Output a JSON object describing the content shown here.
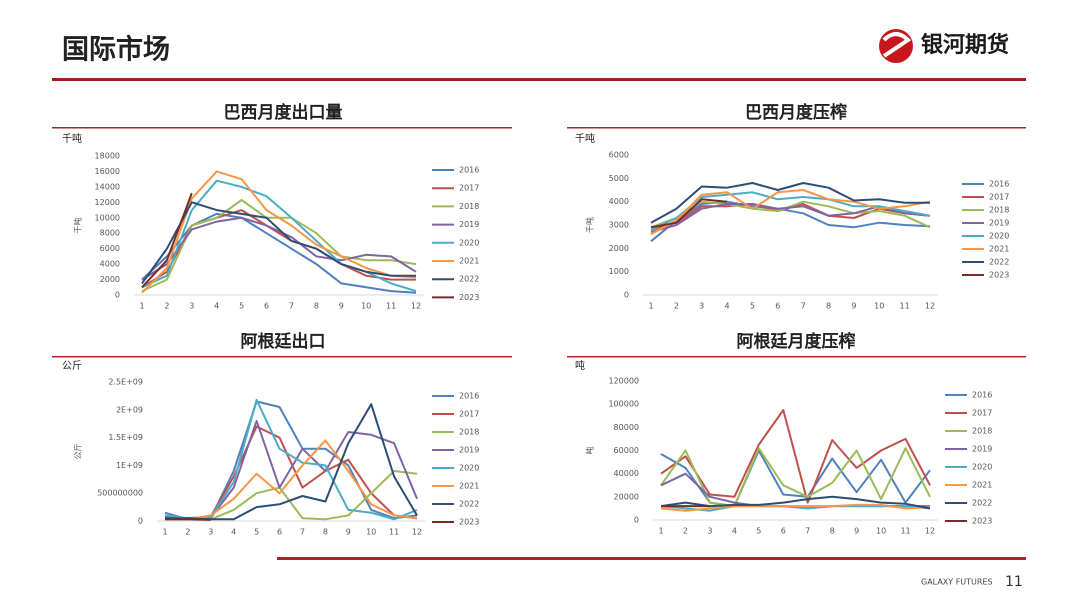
{
  "header": {
    "title": "国际市场",
    "logo": "银河期货"
  },
  "footer": {
    "company": "GALAXY FUTURES",
    "page": "11"
  },
  "chart_data": [
    {
      "type": "line",
      "title": "巴西月度出口量",
      "unit": "千吨",
      "y_label": "千吨",
      "categories": [
        1,
        2,
        3,
        4,
        5,
        6,
        7,
        8,
        9,
        10,
        11,
        12
      ],
      "ylim": [
        0,
        18000
      ],
      "yticks": [
        0,
        2000,
        4000,
        6000,
        8000,
        10000,
        12000,
        14000,
        16000,
        18000
      ],
      "series": [
        {
          "name": "2016",
          "color": "#4f81bd",
          "values": [
            2000,
            5000,
            9000,
            10500,
            10000,
            8000,
            6000,
            4000,
            1500,
            1000,
            500,
            300
          ]
        },
        {
          "name": "2017",
          "color": "#c0504d",
          "values": [
            1000,
            3000,
            9000,
            10000,
            11000,
            9000,
            7000,
            6000,
            4000,
            2500,
            2000,
            2000
          ]
        },
        {
          "name": "2018",
          "color": "#9bbb59",
          "values": [
            500,
            2000,
            9000,
            10000,
            12300,
            10000,
            10000,
            8000,
            5000,
            4500,
            4500,
            4000
          ]
        },
        {
          "name": "2019",
          "color": "#8064a2",
          "values": [
            2000,
            4000,
            8500,
            9500,
            10000,
            9000,
            7500,
            5000,
            4500,
            5200,
            5000,
            3000
          ]
        },
        {
          "name": "2020",
          "color": "#4bacc6",
          "values": [
            1000,
            2500,
            11000,
            14800,
            14000,
            12800,
            10000,
            7000,
            4000,
            3000,
            1500,
            500
          ]
        },
        {
          "name": "2021",
          "color": "#f79646",
          "values": [
            300,
            3500,
            12500,
            16000,
            15000,
            11000,
            9000,
            6500,
            5000,
            3500,
            2500,
            2300
          ]
        },
        {
          "name": "2022",
          "color": "#2c4d75",
          "values": [
            1500,
            6000,
            12000,
            11000,
            10500,
            10000,
            7000,
            6000,
            4000,
            3000,
            2500,
            2500
          ]
        },
        {
          "name": "2023",
          "color": "#772c2a",
          "values": [
            1000,
            4500,
            13200,
            null,
            null,
            null,
            null,
            null,
            null,
            null,
            null,
            null
          ]
        }
      ]
    },
    {
      "type": "line",
      "title": "巴西月度压榨",
      "unit": "千吨",
      "y_label": "千吨",
      "categories": [
        1,
        2,
        3,
        4,
        5,
        6,
        7,
        8,
        9,
        10,
        11,
        12
      ],
      "ylim": [
        0,
        6000
      ],
      "yticks": [
        0,
        1000,
        2000,
        3000,
        4000,
        5000,
        6000
      ],
      "series": [
        {
          "name": "2016",
          "color": "#4f81bd",
          "values": [
            2300,
            3200,
            3900,
            4000,
            3800,
            3700,
            3500,
            3000,
            2900,
            3100,
            3000,
            2950
          ]
        },
        {
          "name": "2017",
          "color": "#c0504d",
          "values": [
            2800,
            3100,
            3800,
            3800,
            3900,
            3600,
            3900,
            3400,
            3300,
            3700,
            3500,
            3400
          ]
        },
        {
          "name": "2018",
          "color": "#9bbb59",
          "values": [
            2900,
            3300,
            4000,
            3900,
            3700,
            3600,
            4000,
            3800,
            3500,
            3600,
            3400,
            2900
          ]
        },
        {
          "name": "2019",
          "color": "#8064a2",
          "values": [
            2700,
            3000,
            3700,
            3900,
            3900,
            3700,
            3800,
            3400,
            3500,
            3800,
            3500,
            3400
          ]
        },
        {
          "name": "2020",
          "color": "#4bacc6",
          "values": [
            2800,
            3300,
            4200,
            4300,
            4400,
            4100,
            4200,
            4100,
            3800,
            3800,
            3600,
            3400
          ]
        },
        {
          "name": "2021",
          "color": "#f79646",
          "values": [
            2600,
            3200,
            4300,
            4400,
            3700,
            4400,
            4500,
            4100,
            4000,
            3700,
            3800,
            4000
          ]
        },
        {
          "name": "2022",
          "color": "#2c4d75",
          "values": [
            3100,
            3700,
            4650,
            4600,
            4800,
            4500,
            4800,
            4600,
            4050,
            4100,
            3950,
            3950
          ]
        },
        {
          "name": "2023",
          "color": "#772c2a",
          "values": [
            2900,
            3100,
            4100,
            4000,
            null,
            null,
            null,
            null,
            null,
            null,
            null,
            null
          ]
        }
      ]
    },
    {
      "type": "line",
      "title": "阿根廷出口",
      "unit": "公斤",
      "y_label": "公斤",
      "categories": [
        1,
        2,
        3,
        4,
        5,
        6,
        7,
        8,
        9,
        10,
        11,
        12
      ],
      "ylim": [
        0,
        2500000000
      ],
      "yticks": [
        0,
        500000000,
        {
          "value": 1000000000,
          "label": "1E+09"
        },
        {
          "value": 1500000000,
          "label": "1.5E+09"
        },
        {
          "value": 2000000000,
          "label": "2E+09"
        },
        {
          "value": 2500000000,
          "label": "2.5E+09"
        }
      ],
      "series": [
        {
          "name": "2016",
          "color": "#4f81bd",
          "values": [
            150000000,
            30000000,
            50000000,
            900000000,
            2150000000,
            2050000000,
            1300000000,
            1300000000,
            1000000000,
            200000000,
            50000000,
            100000000
          ]
        },
        {
          "name": "2017",
          "color": "#c0504d",
          "values": [
            50000000,
            50000000,
            80000000,
            800000000,
            1700000000,
            1500000000,
            600000000,
            900000000,
            1100000000,
            500000000,
            100000000,
            50000000
          ]
        },
        {
          "name": "2018",
          "color": "#9bbb59",
          "values": [
            30000000,
            30000000,
            30000000,
            200000000,
            500000000,
            600000000,
            50000000,
            30000000,
            100000000,
            500000000,
            900000000,
            850000000
          ]
        },
        {
          "name": "2019",
          "color": "#8064a2",
          "values": [
            80000000,
            50000000,
            60000000,
            600000000,
            1800000000,
            600000000,
            1300000000,
            900000000,
            1600000000,
            1550000000,
            1400000000,
            400000000
          ]
        },
        {
          "name": "2020",
          "color": "#4bacc6",
          "values": [
            100000000,
            50000000,
            70000000,
            700000000,
            2180000000,
            1300000000,
            1050000000,
            1000000000,
            200000000,
            150000000,
            30000000,
            200000000
          ]
        },
        {
          "name": "2021",
          "color": "#f79646",
          "values": [
            30000000,
            30000000,
            100000000,
            400000000,
            850000000,
            500000000,
            1000000000,
            1450000000,
            900000000,
            300000000,
            100000000,
            50000000
          ]
        },
        {
          "name": "2022",
          "color": "#2c4d75",
          "values": [
            50000000,
            50000000,
            30000000,
            30000000,
            250000000,
            300000000,
            450000000,
            350000000,
            1400000000,
            2100000000,
            800000000,
            100000000
          ]
        },
        {
          "name": "2023",
          "color": "#772c2a",
          "values": [
            30000000,
            30000000,
            20000000,
            null,
            null,
            null,
            null,
            null,
            null,
            null,
            null,
            null
          ]
        }
      ]
    },
    {
      "type": "line",
      "title": "阿根廷月度压榨",
      "unit": "吨",
      "y_label": "吨",
      "categories": [
        1,
        2,
        3,
        4,
        5,
        6,
        7,
        8,
        9,
        10,
        11,
        12
      ],
      "ylim": [
        0,
        120000
      ],
      "yticks": [
        0,
        20000,
        40000,
        60000,
        80000,
        100000,
        120000
      ],
      "series": [
        {
          "name": "2016",
          "color": "#4f81bd",
          "values": [
            57000,
            45000,
            15000,
            12000,
            60000,
            22000,
            20000,
            53000,
            24000,
            52000,
            15000,
            43000
          ]
        },
        {
          "name": "2017",
          "color": "#c0504d",
          "values": [
            40000,
            55000,
            22000,
            20000,
            65000,
            95000,
            15000,
            69000,
            45000,
            60000,
            70000,
            30000
          ]
        },
        {
          "name": "2018",
          "color": "#9bbb59",
          "values": [
            30000,
            60000,
            15000,
            12000,
            62000,
            30000,
            20000,
            32000,
            60000,
            18000,
            62000,
            20000
          ]
        },
        {
          "name": "2019",
          "color": "#8064a2",
          "values": [
            30000,
            40000,
            20000,
            15000,
            12000,
            12000,
            10000,
            12000,
            12000,
            12000,
            12000,
            12000
          ]
        },
        {
          "name": "2020",
          "color": "#4bacc6",
          "values": [
            12000,
            10000,
            8000,
            12000,
            12000,
            12000,
            10000,
            12000,
            12000,
            12000,
            12000,
            10000
          ]
        },
        {
          "name": "2021",
          "color": "#f79646",
          "values": [
            10000,
            8000,
            10000,
            12000,
            12000,
            12000,
            12000,
            12000,
            13000,
            13000,
            10000,
            11000
          ]
        },
        {
          "name": "2022",
          "color": "#2c4d75",
          "values": [
            12000,
            15000,
            12000,
            13000,
            13000,
            15000,
            18000,
            20000,
            18000,
            15000,
            14000,
            10000
          ]
        },
        {
          "name": "2023",
          "color": "#772c2a",
          "values": [
            12000,
            12000,
            12000,
            null,
            null,
            null,
            null,
            null,
            null,
            null,
            null,
            null
          ]
        }
      ]
    }
  ]
}
